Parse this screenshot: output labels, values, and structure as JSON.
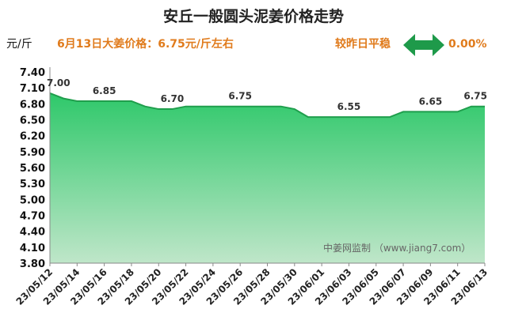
{
  "header": {
    "title": "安丘一般圆头泥姜价格走势",
    "unit": "元/斤",
    "price_note": "6月13日大姜价格：6.75元/斤左右",
    "compare_label": "较昨日平稳",
    "compare_value": "0.00%",
    "arrow_icon": "left-right-arrow-icon",
    "arrow_color": "#1e9a4a"
  },
  "watermark": "中姜网监制 （www.jiang7.com）",
  "chart_data": {
    "type": "area",
    "title": "安丘一般圆头泥姜价格走势",
    "ylabel": "元/斤",
    "ylim": [
      3.8,
      7.4
    ],
    "yticks": [
      3.8,
      4.1,
      4.4,
      4.7,
      5.0,
      5.3,
      5.6,
      5.9,
      6.2,
      6.5,
      6.8,
      7.1,
      7.4
    ],
    "grid": false,
    "fill_color": "#2ec86a",
    "line_color": "#1f9e4c",
    "x": [
      "23/05/12",
      "23/05/13",
      "23/05/14",
      "23/05/15",
      "23/05/16",
      "23/05/17",
      "23/05/18",
      "23/05/19",
      "23/05/20",
      "23/05/21",
      "23/05/22",
      "23/05/23",
      "23/05/24",
      "23/05/25",
      "23/05/26",
      "23/05/27",
      "23/05/28",
      "23/05/29",
      "23/05/30",
      "23/05/31",
      "23/06/01",
      "23/06/02",
      "23/06/03",
      "23/06/04",
      "23/06/05",
      "23/06/06",
      "23/06/07",
      "23/06/08",
      "23/06/09",
      "23/06/10",
      "23/06/11",
      "23/06/12",
      "23/06/13"
    ],
    "xticks": [
      "23/05/12",
      "23/05/14",
      "23/05/16",
      "23/05/18",
      "23/05/20",
      "23/05/22",
      "23/05/24",
      "23/05/26",
      "23/05/28",
      "23/05/30",
      "23/06/01",
      "23/06/03",
      "23/06/05",
      "23/06/07",
      "23/06/09",
      "23/06/11",
      "23/06/13"
    ],
    "values": [
      7.0,
      6.9,
      6.85,
      6.85,
      6.85,
      6.85,
      6.85,
      6.75,
      6.7,
      6.7,
      6.75,
      6.75,
      6.75,
      6.75,
      6.75,
      6.75,
      6.75,
      6.75,
      6.7,
      6.55,
      6.55,
      6.55,
      6.55,
      6.55,
      6.55,
      6.55,
      6.65,
      6.65,
      6.65,
      6.65,
      6.65,
      6.75,
      6.75
    ],
    "data_labels": [
      {
        "x": "23/05/12",
        "text": "7.00"
      },
      {
        "x": "23/05/16",
        "text": "6.85"
      },
      {
        "x": "23/05/21",
        "text": "6.70"
      },
      {
        "x": "23/05/26",
        "text": "6.75"
      },
      {
        "x": "23/06/03",
        "text": "6.55"
      },
      {
        "x": "23/06/09",
        "text": "6.65"
      },
      {
        "x": "23/06/13",
        "text": "6.75"
      }
    ]
  }
}
